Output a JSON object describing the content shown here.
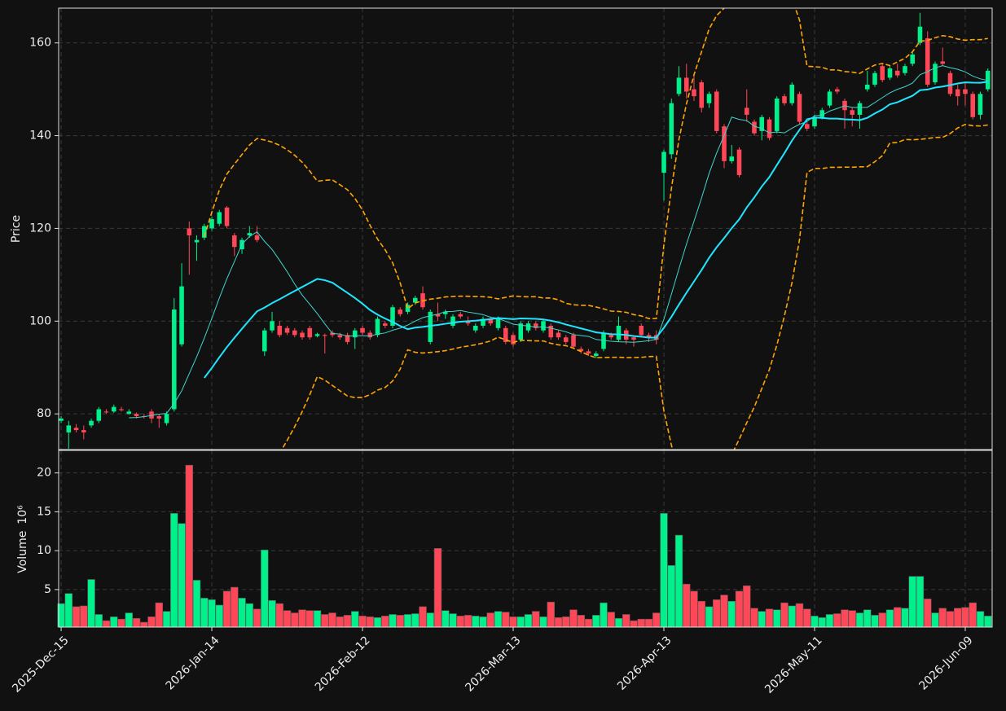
{
  "chart_data": {
    "type": "candlestick",
    "ylabel": "Price",
    "volume_label": "Volume",
    "volume_exponent": "10⁶",
    "categories": [
      "2025-Dec-15",
      null,
      null,
      null,
      null,
      null,
      null,
      null,
      null,
      null,
      null,
      null,
      null,
      null,
      null,
      null,
      null,
      null,
      null,
      null,
      "2026-Jan-14",
      null,
      null,
      null,
      null,
      null,
      null,
      null,
      null,
      null,
      null,
      null,
      null,
      null,
      null,
      null,
      null,
      null,
      null,
      null,
      "2026-Feb-12",
      null,
      null,
      null,
      null,
      null,
      null,
      null,
      null,
      null,
      null,
      null,
      null,
      null,
      null,
      null,
      null,
      null,
      null,
      null,
      "2026-Mar-13",
      null,
      null,
      null,
      null,
      null,
      null,
      null,
      null,
      null,
      null,
      null,
      null,
      null,
      null,
      null,
      null,
      null,
      null,
      null,
      "2026-Apr-13",
      null,
      null,
      null,
      null,
      null,
      null,
      null,
      null,
      null,
      null,
      null,
      null,
      null,
      null,
      null,
      null,
      null,
      null,
      null,
      "2026-May-11",
      null,
      null,
      null,
      null,
      null,
      null,
      null,
      null,
      null,
      null,
      null,
      null,
      null,
      null,
      null,
      null,
      null,
      null,
      null,
      "2026-Jun-09",
      null,
      null,
      null
    ],
    "open": [
      78.5,
      76,
      77,
      76.5,
      77.5,
      78.5,
      80.5,
      80.5,
      81,
      80,
      80,
      79.5,
      80.5,
      79.5,
      78,
      81,
      95,
      120,
      117,
      118,
      120,
      121,
      124.5,
      118.5,
      115.5,
      118.5,
      118.5,
      93.5,
      98,
      99,
      98.5,
      98,
      97.5,
      98.5,
      96.8,
      97,
      97.5,
      97,
      97,
      96.5,
      98.5,
      97.5,
      97,
      99.5,
      99,
      102.5,
      102,
      104,
      106,
      95.5,
      101.5,
      101.5,
      99,
      101.5,
      100,
      98,
      99,
      100.5,
      98.5,
      98.5,
      97,
      96,
      98,
      99.5,
      98,
      99,
      97.5,
      96.5,
      97,
      94,
      93.5,
      92.5,
      94,
      97,
      96,
      98,
      96.5,
      99,
      97,
      97,
      132,
      136,
      149,
      152.5,
      150,
      151.5,
      147,
      149.5,
      142,
      134.5,
      137,
      146,
      143,
      141,
      143.5,
      141,
      148.5,
      147,
      149,
      142.5,
      142,
      144,
      146.5,
      150,
      147.5,
      145.5,
      144.5,
      150,
      151,
      155,
      152.5,
      154,
      153.5,
      155.5,
      160,
      161,
      151.5,
      156,
      153.5,
      150,
      150,
      149,
      144.5,
      150
    ],
    "close": [
      79,
      77.5,
      76.5,
      76,
      78.5,
      81,
      80.3,
      81.5,
      80.8,
      80.5,
      79.5,
      79.4,
      79,
      79,
      80,
      102.5,
      107.5,
      118.5,
      117.5,
      120.5,
      122,
      123.5,
      120.5,
      116,
      117.5,
      119,
      117.5,
      98,
      100,
      97,
      97.5,
      97,
      96.5,
      96.5,
      97.2,
      96.8,
      97,
      96.5,
      95.5,
      98,
      97.5,
      96.5,
      100.5,
      99,
      103,
      101.5,
      103.5,
      105,
      103,
      102,
      101,
      102,
      101,
      101,
      99.5,
      99,
      100.5,
      99.5,
      100.5,
      95.5,
      95,
      99.5,
      99.5,
      98.5,
      100,
      96.5,
      96.5,
      95.5,
      94.5,
      93.5,
      93,
      93,
      97.5,
      96.5,
      99,
      96,
      96,
      97,
      96.5,
      96,
      136.5,
      147,
      152.5,
      149.5,
      148.5,
      146,
      149,
      141,
      134.5,
      135.5,
      131.5,
      144.5,
      140.5,
      144,
      139.5,
      148,
      147,
      151,
      143,
      141.5,
      144,
      145.5,
      149.5,
      149.5,
      145.5,
      144.5,
      147,
      151,
      153.5,
      152,
      154.5,
      153,
      155,
      157.5,
      163.5,
      151,
      155.5,
      155.5,
      149,
      148.5,
      149,
      144,
      149,
      154
    ],
    "high": [
      79.5,
      78.5,
      77.8,
      77.5,
      79,
      81.5,
      81,
      82,
      81.5,
      81,
      80.3,
      80,
      81,
      80,
      80.5,
      105,
      112.5,
      121.5,
      118.5,
      121,
      122.5,
      124,
      124.8,
      119,
      118,
      120.5,
      120.5,
      98.5,
      102,
      100,
      99,
      98.5,
      98,
      99,
      97.5,
      97.3,
      98,
      97.5,
      97.5,
      98.5,
      99,
      98,
      101,
      100,
      103.5,
      103,
      104,
      105.5,
      107.5,
      102.5,
      104,
      102.5,
      101.5,
      102,
      101,
      99.5,
      101,
      101,
      101,
      99,
      97.5,
      100,
      100,
      100,
      100.5,
      99.5,
      98,
      97,
      97.5,
      94.5,
      94,
      93.5,
      98,
      97.5,
      101,
      98.5,
      97,
      99.5,
      97.5,
      98,
      137,
      148,
      155,
      155.5,
      153,
      152,
      149.5,
      150,
      142.5,
      138,
      137.5,
      150,
      143.5,
      144.5,
      144,
      148.5,
      149,
      151.5,
      149.5,
      143,
      144.5,
      146,
      150,
      150.5,
      148,
      146,
      147.5,
      154,
      154,
      155.5,
      155,
      155.5,
      155.5,
      158,
      166.5,
      162.5,
      156,
      159,
      154,
      151,
      151.5,
      149.5,
      149.5,
      154.5
    ],
    "low": [
      78,
      72.5,
      76,
      74.5,
      77,
      78,
      80,
      80.2,
      80.5,
      79.8,
      79,
      79,
      78,
      77,
      77.5,
      80.5,
      94.5,
      110,
      113,
      117.5,
      119.5,
      120.5,
      120,
      114,
      114.5,
      118,
      117,
      92.5,
      97.5,
      96.5,
      97,
      96.5,
      96,
      96,
      96.5,
      93,
      96.5,
      96,
      95,
      94,
      97,
      96,
      96.5,
      98.5,
      98.5,
      101,
      101.5,
      103.5,
      102.5,
      95,
      100,
      100.5,
      98.5,
      100.5,
      99,
      97.5,
      98.5,
      99,
      98,
      95,
      94.5,
      95.5,
      97.5,
      98,
      97.5,
      96,
      96,
      95,
      94,
      93,
      92.5,
      92,
      93.5,
      96,
      95.5,
      95,
      94.5,
      96.5,
      95.5,
      95,
      126,
      135,
      148.5,
      148,
      147.5,
      145,
      146,
      140.5,
      133,
      134,
      131,
      143,
      140,
      139,
      139,
      140.5,
      146.5,
      146.5,
      142.5,
      141,
      141.5,
      143.5,
      146,
      149,
      141.5,
      142,
      141.5,
      149.5,
      150.5,
      151.5,
      152,
      152.5,
      153,
      155,
      159.5,
      150.5,
      151,
      155,
      148.5,
      146.5,
      146.5,
      143.5,
      143.5,
      149.5
    ],
    "volume": [
      3.2,
      4.5,
      2.8,
      2.9,
      6.3,
      1.8,
      1.0,
      1.5,
      1.2,
      2.0,
      1.3,
      0.8,
      1.5,
      3.3,
      2.2,
      14.8,
      13.5,
      21,
      6.2,
      3.9,
      3.7,
      3.0,
      4.8,
      5.3,
      3.9,
      3.2,
      2.5,
      10.1,
      3.6,
      3.2,
      2.3,
      2.0,
      2.4,
      2.3,
      2.3,
      1.8,
      2.0,
      1.5,
      1.7,
      2.2,
      1.6,
      1.5,
      1.4,
      1.6,
      1.8,
      1.7,
      1.8,
      1.9,
      2.8,
      2.0,
      10.3,
      2.3,
      1.9,
      1.6,
      1.7,
      1.6,
      1.5,
      2.0,
      2.2,
      2.1,
      1.5,
      1.5,
      1.8,
      2.2,
      1.5,
      3.4,
      1.4,
      1.5,
      2.4,
      1.7,
      1.2,
      1.7,
      3.3,
      2.1,
      1.3,
      1.8,
      1.0,
      1.2,
      1.2,
      2.0,
      14.8,
      8.1,
      12.0,
      5.7,
      4.8,
      3.5,
      2.8,
      3.7,
      4.3,
      3.5,
      4.8,
      5.5,
      2.6,
      2.2,
      2.5,
      2.4,
      3.3,
      2.9,
      3.2,
      2.5,
      1.6,
      1.4,
      1.8,
      1.9,
      2.4,
      2.3,
      2.0,
      2.4,
      1.7,
      2.0,
      2.4,
      2.7,
      2.6,
      6.7,
      6.7,
      3.8,
      2.0,
      2.6,
      2.2,
      2.6,
      2.7,
      3.3,
      2.2,
      1.6
    ],
    "up_color": "#00f08c",
    "down_color": "#ff4757",
    "ylim": [
      72.3,
      167.5
    ],
    "yticks": [
      80,
      100,
      120,
      140,
      160
    ],
    "volume_ylim": [
      0.17,
      22.9
    ],
    "volume_yticks": [
      5,
      10,
      15,
      20
    ],
    "moving_averages": [
      {
        "period": 10,
        "color": "#3fd6cc"
      },
      {
        "period": 20,
        "color": "#1ee6ff"
      }
    ],
    "bollinger": {
      "period": 20,
      "std": 2,
      "color": "#ffa500"
    },
    "grid": true
  }
}
